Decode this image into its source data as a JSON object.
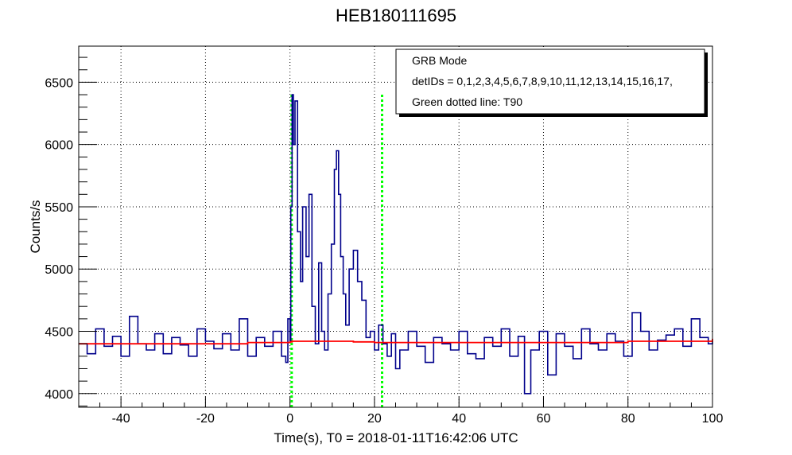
{
  "chart_data": {
    "type": "line",
    "title": "HEB180111695",
    "xlabel": "Time(s), T0 = 2018-01-11T16:42:06 UTC",
    "ylabel": "Counts/s",
    "xlim": [
      -50,
      100
    ],
    "ylim": [
      3890,
      6790
    ],
    "x_ticks": [
      -40,
      -20,
      0,
      20,
      40,
      60,
      80,
      100
    ],
    "y_ticks": [
      4000,
      4500,
      5000,
      5500,
      6000,
      6500
    ],
    "grid": true,
    "legend": {
      "placement": "top-right",
      "entries": [
        "GRB Mode",
        "detIDs = 0,1,2,3,4,5,6,7,8,9,10,11,12,13,14,15,16,17,",
        "Green dotted line: T90"
      ]
    },
    "series": [
      {
        "role": "light curve",
        "color": "#00008b",
        "x": [
          -50,
          -48,
          -46,
          -44,
          -42,
          -40,
          -38,
          -36,
          -34,
          -32,
          -30,
          -28,
          -26,
          -24,
          -22,
          -20,
          -18,
          -16,
          -14,
          -12,
          -10,
          -8,
          -6,
          -4,
          -2,
          -1,
          -0.5,
          0,
          0.2,
          0.5,
          0.8,
          1.2,
          1.8,
          2.5,
          3,
          3.8,
          4.5,
          5.2,
          6,
          6.8,
          7.5,
          8.2,
          9,
          9.8,
          10.5,
          11,
          11.5,
          12,
          12.6,
          13.2,
          14,
          15,
          16,
          17,
          18,
          19,
          20,
          21,
          22,
          23,
          24,
          25,
          26,
          28,
          30,
          32,
          34,
          36,
          38,
          40,
          42,
          44,
          46,
          48,
          50,
          52,
          54,
          55.5,
          57,
          59,
          61,
          63,
          65,
          67,
          69,
          71,
          73,
          75,
          77,
          79,
          81,
          83,
          85,
          87,
          89,
          91,
          93,
          95,
          97,
          99,
          100
        ],
        "y": [
          4400,
          4320,
          4520,
          4380,
          4460,
          4300,
          4620,
          4400,
          4350,
          4480,
          4320,
          4450,
          4390,
          4300,
          4520,
          4420,
          4360,
          4480,
          4350,
          4600,
          4300,
          4450,
          4380,
          4500,
          4300,
          4250,
          4600,
          4420,
          5500,
          6400,
          6000,
          6350,
          5300,
          4900,
          5500,
          5100,
          5600,
          4700,
          4400,
          5050,
          4500,
          4350,
          4800,
          5200,
          5800,
          5950,
          5600,
          5100,
          4800,
          4550,
          5000,
          5150,
          4900,
          4750,
          4450,
          4500,
          4350,
          4550,
          4400,
          4300,
          4480,
          4200,
          4350,
          4500,
          4380,
          4250,
          4450,
          4400,
          4350,
          4500,
          4320,
          4280,
          4450,
          4380,
          4520,
          4300,
          4460,
          4000,
          4350,
          4500,
          4150,
          4480,
          4380,
          4280,
          4520,
          4400,
          4350,
          4480,
          4420,
          4300,
          4650,
          4500,
          4350,
          4430,
          4470,
          4520,
          4380,
          4600,
          4450,
          4400,
          4420
        ]
      },
      {
        "role": "background",
        "color": "#ff0000",
        "x": [
          -50,
          -10,
          0,
          0.5,
          12,
          15,
          20,
          40,
          60,
          80,
          100
        ],
        "y": [
          4400,
          4410,
          4415,
          4420,
          4420,
          4415,
          4410,
          4410,
          4410,
          4420,
          4440
        ]
      }
    ],
    "t90_lines": {
      "color": "#00ff00",
      "x": [
        0.4,
        21.8
      ],
      "y_top": 6400
    }
  }
}
